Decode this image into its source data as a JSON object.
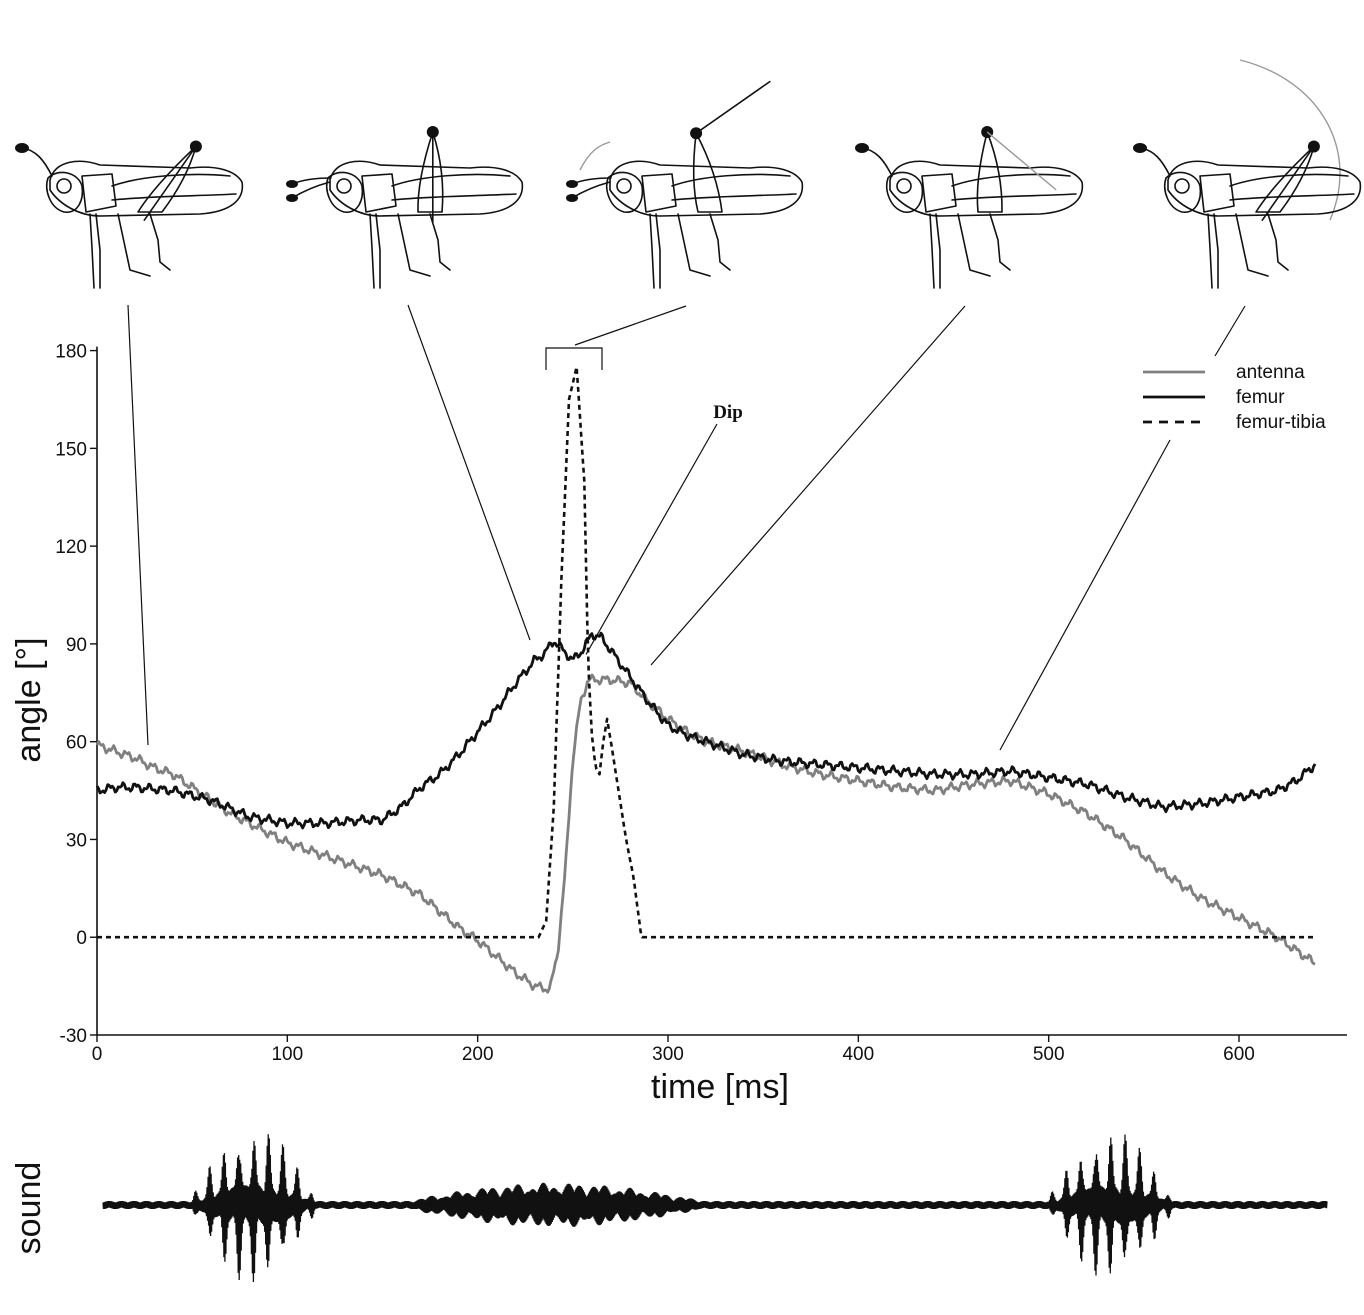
{
  "chart_data": {
    "type": "line",
    "xlabel": "time [ms]",
    "ylabel": "angle [°]",
    "xlim": [
      0,
      650
    ],
    "ylim": [
      -30,
      190
    ],
    "xticks": [
      0,
      100,
      200,
      300,
      400,
      500,
      600
    ],
    "yticks": [
      -30,
      0,
      30,
      60,
      90,
      120,
      150,
      180
    ],
    "legend_position": "top-right",
    "grid": false,
    "series": [
      {
        "name": "antenna",
        "color": "#808080",
        "style": "solid",
        "x": [
          0,
          10,
          20,
          30,
          40,
          50,
          60,
          70,
          80,
          90,
          100,
          110,
          120,
          130,
          140,
          150,
          160,
          170,
          180,
          190,
          200,
          210,
          220,
          230,
          238,
          242,
          246,
          250,
          254,
          258,
          262,
          270,
          280,
          290,
          300,
          310,
          320,
          340,
          360,
          380,
          400,
          420,
          440,
          460,
          480,
          500,
          520,
          540,
          560,
          580,
          600,
          620,
          640
        ],
        "y": [
          59,
          57,
          55,
          52,
          50,
          46,
          42,
          38,
          35,
          32,
          29,
          27,
          25,
          23,
          21,
          19,
          16,
          13,
          8,
          3,
          -1,
          -6,
          -11,
          -15,
          -16,
          -5,
          20,
          55,
          72,
          79,
          79,
          79,
          78,
          72,
          67,
          63,
          60,
          57,
          53,
          50,
          48,
          46,
          45,
          47,
          48,
          44,
          38,
          30,
          20,
          12,
          6,
          0,
          -8
        ]
      },
      {
        "name": "femur",
        "color": "#111111",
        "style": "solid",
        "x": [
          0,
          10,
          20,
          40,
          60,
          80,
          100,
          120,
          140,
          150,
          160,
          170,
          180,
          190,
          200,
          210,
          220,
          230,
          235,
          240,
          245,
          250,
          255,
          260,
          265,
          270,
          280,
          290,
          300,
          310,
          320,
          330,
          340,
          360,
          380,
          400,
          420,
          440,
          460,
          480,
          500,
          520,
          540,
          560,
          580,
          600,
          620,
          630,
          640
        ],
        "y": [
          45,
          46,
          46,
          45,
          42,
          37,
          35,
          35,
          36,
          36,
          40,
          46,
          50,
          56,
          63,
          70,
          78,
          85,
          87,
          91,
          88,
          85,
          88,
          93,
          92,
          88,
          80,
          72,
          65,
          62,
          60,
          58,
          56,
          54,
          53,
          52,
          51,
          50,
          50,
          51,
          49,
          47,
          43,
          40,
          41,
          43,
          45,
          48,
          53
        ]
      },
      {
        "name": "femur-tibia",
        "color": "#111111",
        "style": "dashed",
        "x": [
          0,
          100,
          200,
          232,
          236,
          240,
          244,
          248,
          252,
          256,
          258,
          260,
          262,
          264,
          266,
          268,
          270,
          274,
          278,
          282,
          286,
          290,
          400,
          500,
          600,
          640
        ],
        "y": [
          0,
          0,
          0,
          0,
          5,
          40,
          110,
          165,
          175,
          140,
          85,
          62,
          52,
          50,
          60,
          67,
          60,
          45,
          30,
          18,
          0,
          0,
          0,
          0,
          0,
          0
        ]
      }
    ],
    "annotations": [
      {
        "text": "Dip",
        "x": 248,
        "y": 88
      }
    ],
    "sound_label": "sound",
    "sound_bursts": [
      {
        "start": 45,
        "end": 115,
        "amplitude": 1.0
      },
      {
        "start": 150,
        "end": 330,
        "amplitude": 0.28
      },
      {
        "start": 500,
        "end": 570,
        "amplitude": 0.95
      }
    ]
  }
}
